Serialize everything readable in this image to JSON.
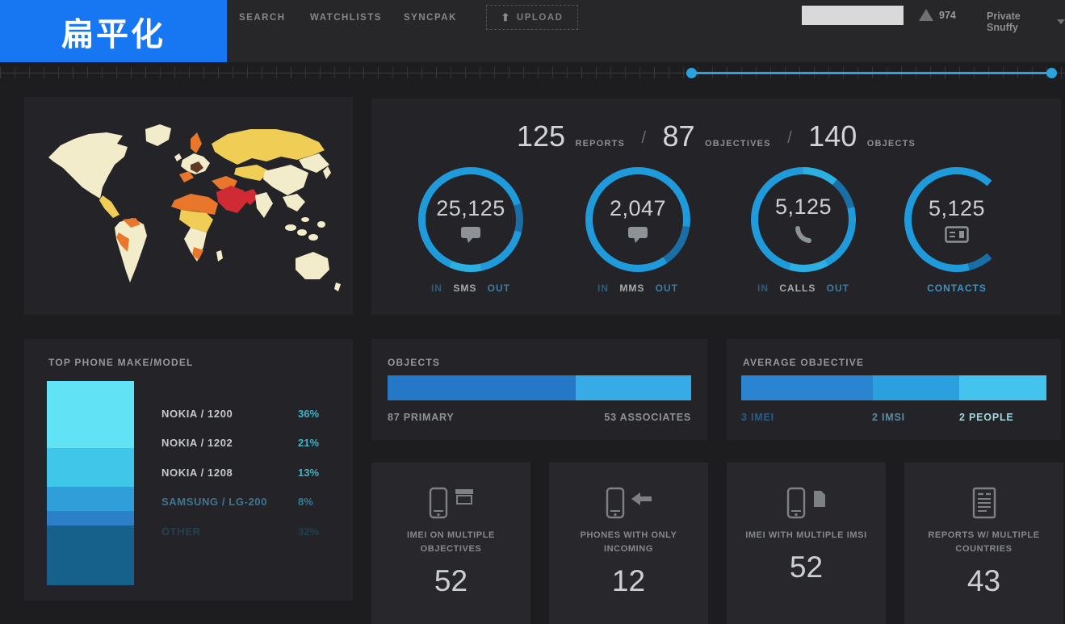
{
  "badge": {
    "label": "扁平化"
  },
  "nav": {
    "items": [
      "SEARCH",
      "WATCHLISTS",
      "SYNCPAK"
    ],
    "upload_label": "UPLOAD",
    "upload_icon": "up-arrow",
    "alerts_count": "974",
    "user": "Private Snuffy"
  },
  "search": {
    "placeholder": "",
    "value": "",
    "icon": "search-icon"
  },
  "header_stats": {
    "separator": "/",
    "items": [
      {
        "value": "125",
        "label": "REPORTS"
      },
      {
        "value": "87",
        "label": "OBJECTIVES"
      },
      {
        "value": "140",
        "label": "OBJECTS"
      }
    ]
  },
  "gauges": [
    {
      "value": "25,125",
      "icon": "speech-bubble-icon",
      "left": "IN",
      "center": "SMS",
      "right": "OUT"
    },
    {
      "value": "2,047",
      "icon": "speech-bubble-icon",
      "left": "IN",
      "center": "MMS",
      "right": "OUT"
    },
    {
      "value": "5,125",
      "icon": "phone-handset-icon",
      "left": "IN",
      "center": "CALLS",
      "right": "OUT"
    },
    {
      "value": "5,125",
      "icon": "contact-card-icon",
      "label": "CONTACTS"
    }
  ],
  "phone_chart": {
    "title": "TOP PHONE MAKE/MODEL",
    "rows": [
      {
        "label": "NOKIA / 1200",
        "pct_text": "36%",
        "pct": 36,
        "color": "#62e2f5"
      },
      {
        "label": "NOKIA / 1202",
        "pct_text": "21%",
        "pct": 21,
        "color": "#3fc6e9"
      },
      {
        "label": "NOKIA / 1208",
        "pct_text": "13%",
        "pct": 13,
        "color": "#2f9ed9"
      },
      {
        "label": "SAMSUNG / LG-200",
        "pct_text": "8%",
        "pct": 8,
        "color": "#2b80c7"
      },
      {
        "label": "OTHER",
        "pct_text": "32%",
        "pct": 32,
        "color": "#16618c"
      }
    ]
  },
  "objects_panel": {
    "title": "OBJECTS",
    "left_caption": "87 PRIMARY",
    "right_caption": "53 ASSOCIATES",
    "segments": [
      {
        "label": "PRIMARY",
        "value": 87,
        "pct": 62,
        "color": "#2478c5"
      },
      {
        "label": "ASSOCIATES",
        "value": 53,
        "pct": 38,
        "color": "#36abe5"
      }
    ]
  },
  "average_panel": {
    "title": "AVERAGE OBJECTIVE",
    "captions": [
      "3 IMEI",
      "2 IMSI",
      "2 PEOPLE"
    ],
    "segments": [
      {
        "label": "IMEI",
        "value": 3,
        "pct": 43,
        "color": "#2b84cf"
      },
      {
        "label": "IMSI",
        "value": 2,
        "pct": 28.5,
        "color": "#2aa1de"
      },
      {
        "label": "PEOPLE",
        "value": 2,
        "pct": 28.5,
        "color": "#44c3ef"
      }
    ]
  },
  "cards": [
    {
      "icon": "phone-plus-box-icon",
      "line1": "IMEI ON MULTIPLE",
      "line2": "OBJECTIVES",
      "value": "52"
    },
    {
      "icon": "phone-incoming-arrow-icon",
      "line1": "PHONES WITH ONLY",
      "line2": "INCOMING",
      "value": "12"
    },
    {
      "icon": "phone-plus-sim-icon",
      "line1": "IMEI WITH MULTIPLE IMSI",
      "line2": "",
      "value": "52"
    },
    {
      "icon": "report-document-icon",
      "line1": "REPORTS W/ MULTIPLE",
      "line2": "COUNTRIES",
      "value": "43"
    }
  ],
  "colors": {
    "accent_blue": "#2aa4dc",
    "badge_blue": "#1777f2",
    "panel_bg": "#242428",
    "card_bg": "#28282c",
    "page_bg": "#1d1d20",
    "map_land": "#f2ecca",
    "map_low": "#f0cd55",
    "map_mid": "#e8772c",
    "map_high": "#d02b35",
    "map_dark": "#5f3a22"
  },
  "chart_data": [
    {
      "type": "bar",
      "title": "TOP PHONE MAKE/MODEL",
      "orientation": "vertical-stacked",
      "categories": [
        "NOKIA / 1200",
        "NOKIA / 1202",
        "NOKIA / 1208",
        "SAMSUNG / LG-200",
        "OTHER"
      ],
      "values": [
        36,
        21,
        13,
        8,
        32
      ],
      "unit": "%"
    },
    {
      "type": "bar",
      "title": "OBJECTS",
      "orientation": "horizontal-stacked",
      "categories": [
        "PRIMARY",
        "ASSOCIATES"
      ],
      "values": [
        87,
        53
      ]
    },
    {
      "type": "bar",
      "title": "AVERAGE OBJECTIVE",
      "orientation": "horizontal-stacked",
      "categories": [
        "IMEI",
        "IMSI",
        "PEOPLE"
      ],
      "values": [
        3,
        2,
        2
      ]
    }
  ]
}
